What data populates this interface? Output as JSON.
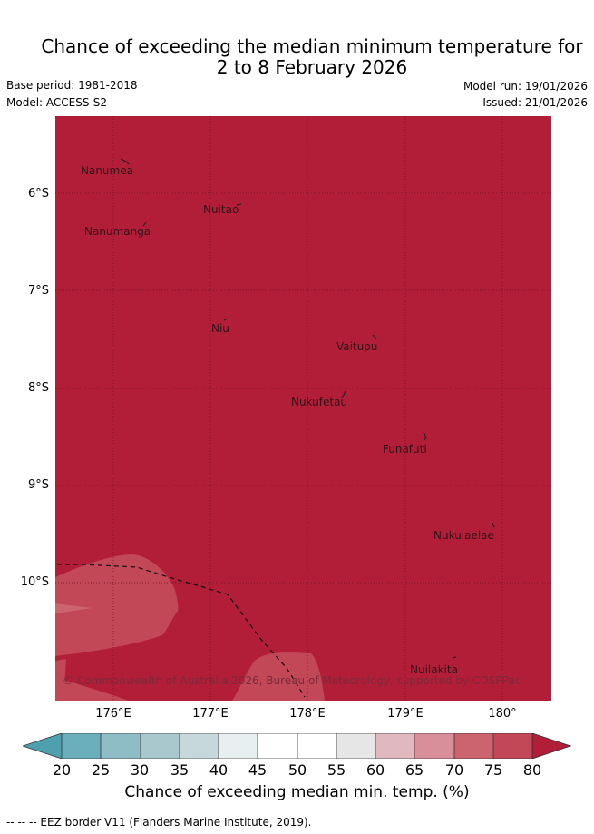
{
  "title_line1": "Chance of exceeding the median minimum temperature for",
  "title_line2": "2 to 8 February 2026",
  "base_period": "Base period: 1981-2018",
  "model": "Model: ACCESS-S2",
  "model_run": "Model run: 19/01/2026",
  "issued": "Issued: 21/01/2026",
  "lat_labels": [
    "6°S",
    "7°S",
    "8°S",
    "9°S",
    "10°S"
  ],
  "lon_labels": [
    "176°E",
    "177°E",
    "178°E",
    "179°E",
    "180°"
  ],
  "places": [
    "Nanumea",
    "Nuitao",
    "Nanumanga",
    "Niu",
    "Vaitupu",
    "Nukufetau",
    "Funafuti",
    "Nukulaelae",
    "Nuilakita"
  ],
  "copyright": "© Commonwealth of Australia 2026, Bureau of Meteorology, supported by COSPPac",
  "colorbar": {
    "ticks": [
      "20",
      "25",
      "30",
      "35",
      "40",
      "45",
      "50",
      "55",
      "60",
      "65",
      "70",
      "75",
      "80"
    ],
    "label": "Chance of exceeding median min. temp. (%)",
    "colors": {
      "below_20": "#4fa0ae",
      "20_25": "#6aafbb",
      "25_30": "#8ebdc6",
      "30_35": "#a9c8cd",
      "35_40": "#c6d8dc",
      "40_45": "#e8eff1",
      "45_55": "#ffffff",
      "55_60": "#e6e6e6",
      "60_65": "#e0b8c0",
      "65_70": "#d98f9a",
      "70_75": "#cc6470",
      "75_80": "#c24857",
      "above_80": "#b21e38"
    }
  },
  "footer": "--  --  -- EEZ border V11 (Flanders Marine Institute, 2019)."
}
